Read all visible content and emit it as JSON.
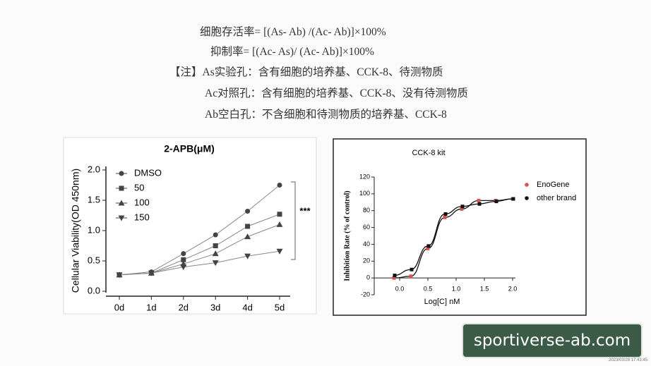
{
  "formulas": [
    "细胞存活率= [(As- Ab) /(Ac- Ab)]×100%",
    "抑制率= [(Ac- As)/ (Ac- Ab)]×100%",
    "【注】As实验孔：含有细胞的培养基、CCK-8、待测物质",
    "Ac对照孔：含有细胞的培养基、CCK-8、没有待测物质",
    "Ab空白孔：不含细胞和待测物质的培养基、CCK-8"
  ],
  "watermark": "sportiverse-ab.com",
  "timestamp": "2023/03/28 17:43:45",
  "chart_data": [
    {
      "type": "line",
      "title": "2-APB(μM)",
      "y_label": "Cellular Viability(OD 450nm)",
      "annotation": "***",
      "categories": [
        "0d",
        "1d",
        "2d",
        "3d",
        "4d",
        "5d"
      ],
      "series": [
        {
          "name": "DMSO",
          "color": "#444",
          "marker": "circle",
          "values": [
            0.27,
            0.32,
            0.62,
            0.93,
            1.32,
            1.75
          ]
        },
        {
          "name": "50",
          "color": "#444",
          "marker": "square",
          "values": [
            0.27,
            0.3,
            0.52,
            0.75,
            1.07,
            1.27
          ]
        },
        {
          "name": "100",
          "color": "#444",
          "marker": "triangle-up",
          "values": [
            0.27,
            0.3,
            0.45,
            0.62,
            0.9,
            1.1
          ]
        },
        {
          "name": "150",
          "color": "#444",
          "marker": "triangle-down",
          "values": [
            0.27,
            0.3,
            0.4,
            0.47,
            0.58,
            0.66
          ]
        }
      ],
      "ylim": [
        0,
        2.0
      ],
      "yticks": [
        {
          "value": 0,
          "label": "0.0"
        },
        {
          "value": 0.5,
          "label": "0.5"
        },
        {
          "value": 1,
          "label": "1.0"
        },
        {
          "value": 1.5,
          "label": "1.5"
        },
        {
          "value": 2,
          "label": "2.0"
        }
      ]
    },
    {
      "type": "scatter",
      "title": "CCK-8 kit",
      "x_label": "Log[C] nM",
      "y_label": "Inhibition Rate (% of control)",
      "x": [
        -0.1,
        0.2,
        0.5,
        0.8,
        1.1,
        1.4,
        1.7,
        2.0
      ],
      "series": [
        {
          "name": "EnoGene",
          "color": "#d9534f",
          "values": [
            0,
            2,
            35,
            72,
            82,
            92,
            92,
            94
          ]
        },
        {
          "name": "other brand",
          "color": "#111",
          "values": [
            3,
            10,
            38,
            76,
            85,
            88,
            91,
            94
          ]
        }
      ],
      "xlim": [
        -0.45,
        2.05
      ],
      "xticks": [
        {
          "value": 0,
          "label": "0.0"
        },
        0.5,
        {
          "value": 1,
          "label": "1.0"
        },
        1.5,
        {
          "value": 2,
          "label": "2.0"
        }
      ],
      "ylim": [
        -20,
        120
      ],
      "yticks": [
        -20,
        0,
        20,
        40,
        60,
        80,
        100,
        120
      ]
    }
  ]
}
